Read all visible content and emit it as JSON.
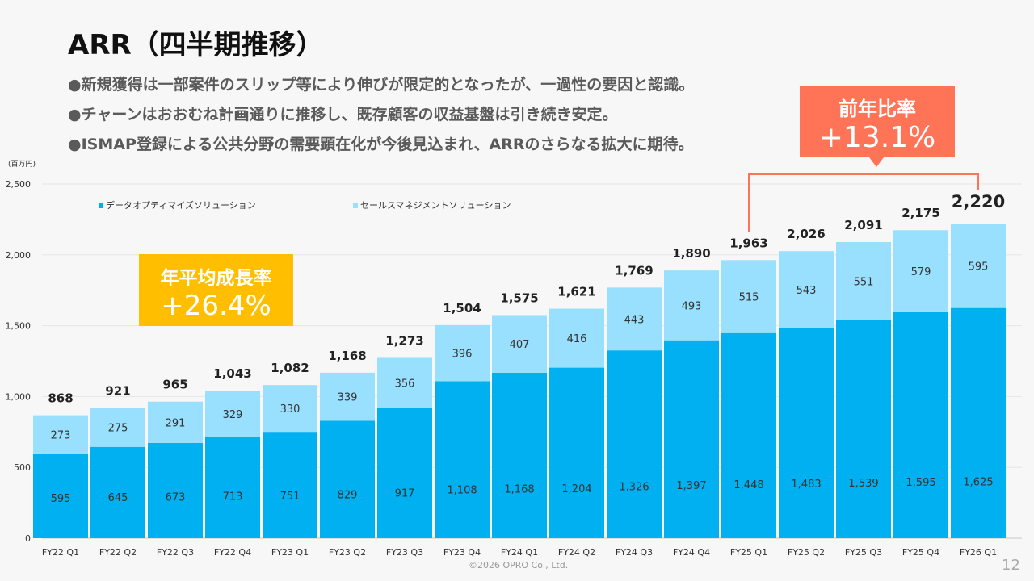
{
  "slide": {
    "title": "ARR（四半期推移）",
    "bullets": [
      "●新規獲得は一部案件のスリップ等により伸びが限定的となったが、一過性の要因と認識。",
      "●チャーンはおおむね計画通りに推移し、既存顧客の収益基盤は引き続き安定。",
      "●ISMAP登録による公共分野の需要顕在化が今後見込まれ、ARRのさらなる拡大に期待。"
    ],
    "yoy_callout": {
      "label": "前年比率",
      "value": "+13.1%",
      "color": "#ff7356"
    },
    "cagr_callout": {
      "label": "年平均成長率",
      "value": "+26.4%",
      "color": "#ffbe00"
    },
    "footer": "©2026 OPRO Co., Ltd.",
    "page_number": "12"
  },
  "chart_data": {
    "type": "bar",
    "stacked": true,
    "title": "ARR（四半期推移）",
    "ylabel": "(百万円)",
    "xlabel": "",
    "ylim": [
      0,
      2500
    ],
    "yticks": [
      0,
      500,
      1000,
      1500,
      2000,
      2500
    ],
    "ytick_labels": [
      "0",
      "500",
      "1,000",
      "1,500",
      "2,000",
      "2,500"
    ],
    "grid": true,
    "legend_position": "top-left",
    "categories": [
      "FY22 Q1",
      "FY22 Q2",
      "FY22 Q3",
      "FY22 Q4",
      "FY23 Q1",
      "FY23 Q2",
      "FY23 Q3",
      "FY23 Q4",
      "FY24 Q1",
      "FY24 Q2",
      "FY24 Q3",
      "FY24 Q4",
      "FY25 Q1",
      "FY25 Q2",
      "FY25 Q3",
      "FY25 Q4",
      "FY26 Q1"
    ],
    "series": [
      {
        "name": "データオプティマイズソリューション",
        "color": "#00b0f0",
        "values": [
          595,
          645,
          673,
          713,
          751,
          829,
          917,
          1108,
          1168,
          1204,
          1326,
          1397,
          1448,
          1483,
          1539,
          1595,
          1625
        ]
      },
      {
        "name": "セールスマネジメントソリューション",
        "color": "#99e0ff",
        "values": [
          273,
          275,
          291,
          329,
          330,
          339,
          356,
          396,
          407,
          416,
          443,
          493,
          515,
          543,
          551,
          579,
          595
        ]
      }
    ],
    "totals": [
      868,
      921,
      965,
      1043,
      1082,
      1168,
      1273,
      1504,
      1575,
      1621,
      1769,
      1890,
      1963,
      2026,
      2091,
      2175,
      2220
    ],
    "annotations": [
      {
        "text": "前年比率 +13.1%",
        "from": "FY25 Q1",
        "to": "FY26 Q1"
      },
      {
        "text": "年平均成長率 +26.4%"
      }
    ]
  }
}
